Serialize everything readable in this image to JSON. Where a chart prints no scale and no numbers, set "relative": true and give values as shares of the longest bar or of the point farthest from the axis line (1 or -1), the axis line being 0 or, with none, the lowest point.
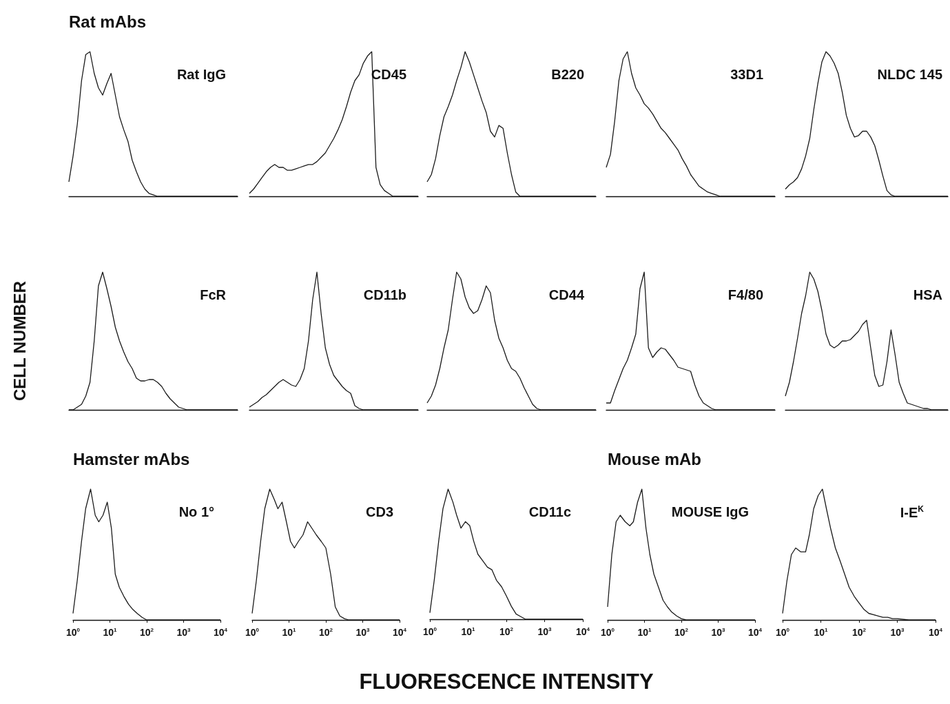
{
  "chart_data": [
    {
      "type": "line",
      "title": "Rat IgG",
      "subtitle": "Rat mAbs",
      "relative": true,
      "marker": "none",
      "color": "#1a1a1a",
      "categories": [
        null,
        null,
        null,
        null,
        null,
        null,
        null,
        null,
        null,
        null,
        null,
        null,
        null,
        null,
        null,
        null,
        null,
        null,
        null,
        null,
        null,
        null,
        null,
        null,
        null,
        null,
        null,
        null,
        null,
        null,
        null,
        null,
        null,
        null,
        null,
        null,
        null,
        null,
        null,
        null,
        null
      ],
      "values": [
        0.1,
        0.28,
        0.5,
        0.8,
        0.98,
        1,
        0.85,
        0.75,
        0.7,
        0.78,
        0.85,
        0.7,
        0.55,
        0.46,
        0.38,
        0.25,
        0.17,
        0.1,
        0.05,
        0.02,
        0.01,
        0,
        0,
        0,
        0,
        0,
        0,
        0,
        0,
        0,
        0,
        0,
        0,
        0,
        0,
        0,
        0,
        0,
        0,
        0,
        0
      ]
    },
    {
      "type": "line",
      "title": "CD45",
      "relative": true,
      "marker": "none",
      "color": "#1a1a1a",
      "categories": [
        null,
        null,
        null,
        null,
        null,
        null,
        null,
        null,
        null,
        null,
        null,
        null,
        null,
        null,
        null,
        null,
        null,
        null,
        null,
        null,
        null,
        null,
        null,
        null,
        null,
        null,
        null,
        null,
        null,
        null,
        null,
        null,
        null,
        null,
        null,
        null,
        null,
        null,
        null,
        null,
        null
      ],
      "values": [
        0.02,
        0.05,
        0.09,
        0.13,
        0.17,
        0.2,
        0.22,
        0.2,
        0.2,
        0.18,
        0.18,
        0.19,
        0.2,
        0.21,
        0.22,
        0.22,
        0.24,
        0.27,
        0.3,
        0.35,
        0.4,
        0.46,
        0.53,
        0.62,
        0.72,
        0.8,
        0.84,
        0.92,
        0.97,
        1,
        0.2,
        0.08,
        0.04,
        0.02,
        0,
        0,
        0,
        0,
        0,
        0,
        0
      ]
    },
    {
      "type": "line",
      "title": "B220",
      "relative": true,
      "marker": "none",
      "color": "#1a1a1a",
      "categories": [
        null,
        null,
        null,
        null,
        null,
        null,
        null,
        null,
        null,
        null,
        null,
        null,
        null,
        null,
        null,
        null,
        null,
        null,
        null,
        null,
        null,
        null,
        null,
        null,
        null,
        null,
        null,
        null,
        null,
        null,
        null,
        null,
        null,
        null,
        null,
        null,
        null,
        null,
        null,
        null,
        null
      ],
      "values": [
        0.1,
        0.15,
        0.26,
        0.42,
        0.55,
        0.62,
        0.7,
        0.8,
        0.89,
        1,
        0.93,
        0.84,
        0.75,
        0.66,
        0.58,
        0.45,
        0.41,
        0.49,
        0.47,
        0.3,
        0.15,
        0.03,
        0,
        0,
        0,
        0,
        0,
        0,
        0,
        0,
        0,
        0,
        0,
        0,
        0,
        0,
        0,
        0,
        0,
        0,
        0
      ]
    },
    {
      "type": "line",
      "title": "33D1",
      "relative": true,
      "marker": "none",
      "color": "#1a1a1a",
      "categories": [
        null,
        null,
        null,
        null,
        null,
        null,
        null,
        null,
        null,
        null,
        null,
        null,
        null,
        null,
        null,
        null,
        null,
        null,
        null,
        null,
        null,
        null,
        null,
        null,
        null,
        null,
        null,
        null,
        null,
        null,
        null,
        null,
        null,
        null,
        null,
        null,
        null,
        null,
        null,
        null,
        null
      ],
      "values": [
        0.2,
        0.29,
        0.52,
        0.8,
        0.95,
        1,
        0.85,
        0.75,
        0.7,
        0.64,
        0.61,
        0.57,
        0.52,
        0.47,
        0.44,
        0.4,
        0.36,
        0.32,
        0.26,
        0.21,
        0.15,
        0.11,
        0.07,
        0.05,
        0.03,
        0.02,
        0.01,
        0,
        0,
        0,
        0,
        0,
        0,
        0,
        0,
        0,
        0,
        0,
        0,
        0,
        0
      ]
    },
    {
      "type": "line",
      "title": "NLDC 145",
      "relative": true,
      "marker": "none",
      "color": "#1a1a1a",
      "categories": [
        null,
        null,
        null,
        null,
        null,
        null,
        null,
        null,
        null,
        null,
        null,
        null,
        null,
        null,
        null,
        null,
        null,
        null,
        null,
        null,
        null,
        null,
        null,
        null,
        null,
        null,
        null,
        null,
        null,
        null,
        null,
        null,
        null,
        null,
        null,
        null,
        null,
        null,
        null,
        null,
        null
      ],
      "values": [
        0.05,
        0.08,
        0.1,
        0.13,
        0.19,
        0.28,
        0.4,
        0.6,
        0.78,
        0.93,
        1,
        0.97,
        0.92,
        0.85,
        0.72,
        0.56,
        0.47,
        0.41,
        0.42,
        0.45,
        0.45,
        0.41,
        0.35,
        0.25,
        0.14,
        0.04,
        0.01,
        0,
        0,
        0,
        0,
        0,
        0,
        0,
        0,
        0,
        0,
        0,
        0,
        0,
        0
      ]
    },
    {
      "type": "line",
      "title": "FcR",
      "ylabel": "CELL NUMBER",
      "relative": true,
      "marker": "none",
      "color": "#1a1a1a",
      "categories": [
        null,
        null,
        null,
        null,
        null,
        null,
        null,
        null,
        null,
        null,
        null,
        null,
        null,
        null,
        null,
        null,
        null,
        null,
        null,
        null,
        null,
        null,
        null,
        null,
        null,
        null,
        null,
        null,
        null,
        null,
        null,
        null,
        null,
        null,
        null,
        null,
        null,
        null,
        null,
        null,
        null
      ],
      "values": [
        0,
        0,
        0.02,
        0.04,
        0.1,
        0.2,
        0.5,
        0.9,
        1,
        0.88,
        0.75,
        0.6,
        0.5,
        0.42,
        0.35,
        0.3,
        0.23,
        0.21,
        0.21,
        0.22,
        0.22,
        0.2,
        0.17,
        0.12,
        0.08,
        0.05,
        0.02,
        0.01,
        0,
        0,
        0,
        0,
        0,
        0,
        0,
        0,
        0,
        0,
        0,
        0,
        0
      ]
    },
    {
      "type": "line",
      "title": "CD11b",
      "relative": true,
      "marker": "none",
      "color": "#1a1a1a",
      "categories": [
        null,
        null,
        null,
        null,
        null,
        null,
        null,
        null,
        null,
        null,
        null,
        null,
        null,
        null,
        null,
        null,
        null,
        null,
        null,
        null,
        null,
        null,
        null,
        null,
        null,
        null,
        null,
        null,
        null,
        null,
        null,
        null,
        null,
        null,
        null,
        null,
        null,
        null,
        null,
        null,
        null
      ],
      "values": [
        0.02,
        0.04,
        0.06,
        0.09,
        0.11,
        0.14,
        0.17,
        0.2,
        0.22,
        0.2,
        0.18,
        0.17,
        0.22,
        0.3,
        0.5,
        0.8,
        1,
        0.7,
        0.45,
        0.33,
        0.25,
        0.21,
        0.17,
        0.14,
        0.12,
        0.03,
        0.01,
        0,
        0,
        0,
        0,
        0,
        0,
        0,
        0,
        0,
        0,
        0,
        0,
        0,
        0
      ]
    },
    {
      "type": "line",
      "title": "CD44",
      "relative": true,
      "marker": "none",
      "color": "#1a1a1a",
      "categories": [
        null,
        null,
        null,
        null,
        null,
        null,
        null,
        null,
        null,
        null,
        null,
        null,
        null,
        null,
        null,
        null,
        null,
        null,
        null,
        null,
        null,
        null,
        null,
        null,
        null,
        null,
        null,
        null,
        null,
        null,
        null,
        null,
        null,
        null,
        null,
        null,
        null,
        null,
        null,
        null,
        null
      ],
      "values": [
        0.05,
        0.1,
        0.18,
        0.3,
        0.45,
        0.58,
        0.8,
        1,
        0.95,
        0.82,
        0.74,
        0.7,
        0.72,
        0.8,
        0.9,
        0.85,
        0.65,
        0.52,
        0.45,
        0.36,
        0.3,
        0.28,
        0.23,
        0.16,
        0.1,
        0.04,
        0.01,
        0,
        0,
        0,
        0,
        0,
        0,
        0,
        0,
        0,
        0,
        0,
        0,
        0,
        0
      ]
    },
    {
      "type": "line",
      "title": "F4/80",
      "relative": true,
      "marker": "none",
      "color": "#1a1a1a",
      "categories": [
        null,
        null,
        null,
        null,
        null,
        null,
        null,
        null,
        null,
        null,
        null,
        null,
        null,
        null,
        null,
        null,
        null,
        null,
        null,
        null,
        null,
        null,
        null,
        null,
        null,
        null,
        null,
        null,
        null,
        null,
        null,
        null,
        null,
        null,
        null,
        null,
        null,
        null,
        null,
        null,
        null
      ],
      "values": [
        0.05,
        0.05,
        0.14,
        0.22,
        0.3,
        0.36,
        0.45,
        0.55,
        0.88,
        1,
        0.45,
        0.38,
        0.42,
        0.45,
        0.44,
        0.4,
        0.36,
        0.31,
        0.3,
        0.29,
        0.28,
        0.18,
        0.1,
        0.05,
        0.03,
        0.01,
        0,
        0,
        0,
        0,
        0,
        0,
        0,
        0,
        0,
        0,
        0,
        0,
        0,
        0,
        0
      ]
    },
    {
      "type": "line",
      "title": "HSA",
      "relative": true,
      "marker": "none",
      "color": "#1a1a1a",
      "categories": [
        null,
        null,
        null,
        null,
        null,
        null,
        null,
        null,
        null,
        null,
        null,
        null,
        null,
        null,
        null,
        null,
        null,
        null,
        null,
        null,
        null,
        null,
        null,
        null,
        null,
        null,
        null,
        null,
        null,
        null,
        null,
        null,
        null,
        null,
        null,
        null,
        null,
        null,
        null,
        null,
        null
      ],
      "values": [
        0.1,
        0.2,
        0.35,
        0.52,
        0.7,
        0.83,
        1,
        0.95,
        0.86,
        0.72,
        0.55,
        0.47,
        0.45,
        0.47,
        0.5,
        0.5,
        0.51,
        0.54,
        0.57,
        0.62,
        0.65,
        0.45,
        0.25,
        0.17,
        0.18,
        0.35,
        0.58,
        0.4,
        0.2,
        0.12,
        0.05,
        0.04,
        0.03,
        0.02,
        0.01,
        0.01,
        0,
        0,
        0,
        0,
        0
      ]
    },
    {
      "type": "line",
      "title": "No 1°",
      "subtitle": "Hamster mAbs",
      "relative": true,
      "log": "x",
      "marker": "none",
      "color": "#1a1a1a",
      "tick_labels": "x",
      "xlim": [
        1,
        10000
      ],
      "xticks": [
        {
          "value": 1,
          "label": "10$^{0}$"
        },
        {
          "value": 10,
          "label": "10$^{1}$"
        },
        {
          "value": 100,
          "label": "10$^{2}$"
        },
        {
          "value": 1000,
          "label": "10$^{3}$"
        },
        {
          "value": 10000,
          "label": "10$^{4}$"
        }
      ],
      "x": [
        1,
        1.3,
        1.7,
        2.2,
        3,
        4,
        5,
        6.5,
        8.5,
        11,
        14,
        18,
        24,
        32,
        42,
        55,
        75,
        100,
        135,
        180,
        240,
        320,
        420,
        560,
        750,
        1000,
        2000,
        5000,
        10000
      ],
      "values": [
        0.05,
        0.3,
        0.6,
        0.85,
        1,
        0.8,
        0.75,
        0.8,
        0.9,
        0.7,
        0.35,
        0.25,
        0.18,
        0.12,
        0.08,
        0.05,
        0.02,
        0,
        0,
        0,
        0,
        0,
        0,
        0,
        0,
        0,
        0,
        0,
        0
      ]
    },
    {
      "type": "line",
      "title": "CD3",
      "relative": true,
      "log": "x",
      "marker": "none",
      "color": "#1a1a1a",
      "tick_labels": "x",
      "xlim": [
        1,
        10000
      ],
      "xticks": [
        {
          "value": 1,
          "label": "10$^{0}$"
        },
        {
          "value": 10,
          "label": "10$^{1}$"
        },
        {
          "value": 100,
          "label": "10$^{2}$"
        },
        {
          "value": 1000,
          "label": "10$^{3}$"
        },
        {
          "value": 10000,
          "label": "10$^{4}$"
        }
      ],
      "x": [
        1,
        1.3,
        1.7,
        2.2,
        3,
        4,
        5,
        6.5,
        8.5,
        11,
        14,
        18,
        24,
        32,
        42,
        55,
        75,
        100,
        135,
        180,
        240,
        320,
        420,
        560,
        750,
        1000,
        2000,
        5000,
        10000
      ],
      "values": [
        0.05,
        0.3,
        0.6,
        0.85,
        1,
        0.92,
        0.85,
        0.9,
        0.75,
        0.6,
        0.55,
        0.6,
        0.65,
        0.75,
        0.7,
        0.65,
        0.6,
        0.55,
        0.35,
        0.1,
        0.03,
        0.01,
        0,
        0,
        0,
        0,
        0,
        0,
        0
      ]
    },
    {
      "type": "line",
      "title": "CD11c",
      "xlabel": "FLUORESCENCE INTENSITY",
      "relative": true,
      "log": "x",
      "marker": "none",
      "color": "#1a1a1a",
      "tick_labels": "x",
      "xlim": [
        1,
        10000
      ],
      "xticks": [
        {
          "value": 1,
          "label": "10$^{0}$"
        },
        {
          "value": 10,
          "label": "10$^{1}$"
        },
        {
          "value": 100,
          "label": "10$^{2}$"
        },
        {
          "value": 1000,
          "label": "10$^{3}$"
        },
        {
          "value": 10000,
          "label": "10$^{4}$"
        }
      ],
      "x": [
        1,
        1.3,
        1.7,
        2.2,
        3,
        4,
        5,
        6.5,
        8.5,
        11,
        14,
        18,
        24,
        32,
        42,
        55,
        75,
        100,
        135,
        180,
        240,
        320,
        420,
        560,
        750,
        1000,
        2000,
        5000,
        10000
      ],
      "values": [
        0.05,
        0.3,
        0.6,
        0.85,
        1,
        0.9,
        0.8,
        0.7,
        0.75,
        0.72,
        0.6,
        0.5,
        0.45,
        0.4,
        0.38,
        0.3,
        0.25,
        0.18,
        0.1,
        0.04,
        0.02,
        0,
        0,
        0,
        0,
        0,
        0,
        0,
        0
      ]
    },
    {
      "type": "line",
      "title": "MOUSE IgG",
      "subtitle": "Mouse mAb",
      "relative": true,
      "log": "x",
      "marker": "none",
      "color": "#1a1a1a",
      "tick_labels": "x",
      "xlim": [
        1,
        10000
      ],
      "xticks": [
        {
          "value": 1,
          "label": "10$^{0}$"
        },
        {
          "value": 10,
          "label": "10$^{1}$"
        },
        {
          "value": 100,
          "label": "10$^{2}$"
        },
        {
          "value": 1000,
          "label": "10$^{3}$"
        },
        {
          "value": 10000,
          "label": "10$^{4}$"
        }
      ],
      "x": [
        1,
        1.3,
        1.7,
        2.2,
        3,
        4,
        5,
        6.5,
        8.5,
        11,
        14,
        18,
        24,
        32,
        42,
        55,
        75,
        100,
        135,
        180,
        240,
        320,
        420,
        560,
        750,
        1000,
        2000,
        5000,
        10000
      ],
      "values": [
        0.1,
        0.5,
        0.75,
        0.8,
        0.75,
        0.72,
        0.75,
        0.9,
        1,
        0.7,
        0.5,
        0.35,
        0.25,
        0.15,
        0.1,
        0.06,
        0.03,
        0.01,
        0,
        0,
        0,
        0,
        0,
        0,
        0,
        0,
        0,
        0,
        0
      ]
    },
    {
      "type": "line",
      "title": "I-E$^{K}$",
      "relative": true,
      "log": "x",
      "marker": "none",
      "color": "#1a1a1a",
      "tick_labels": "x",
      "xlim": [
        1,
        10000
      ],
      "xticks": [
        {
          "value": 1,
          "label": "10$^{0}$"
        },
        {
          "value": 10,
          "label": "10$^{1}$"
        },
        {
          "value": 100,
          "label": "10$^{2}$"
        },
        {
          "value": 1000,
          "label": "10$^{3}$"
        },
        {
          "value": 10000,
          "label": "10$^{4}$"
        }
      ],
      "x": [
        1,
        1.3,
        1.7,
        2.2,
        3,
        4,
        5,
        6.5,
        8.5,
        11,
        14,
        18,
        24,
        32,
        42,
        55,
        75,
        100,
        135,
        180,
        240,
        320,
        420,
        560,
        750,
        1000,
        2000,
        5000,
        10000
      ],
      "values": [
        0.05,
        0.3,
        0.5,
        0.55,
        0.52,
        0.52,
        0.65,
        0.85,
        0.95,
        1,
        0.85,
        0.7,
        0.55,
        0.45,
        0.35,
        0.25,
        0.18,
        0.13,
        0.08,
        0.05,
        0.04,
        0.03,
        0.02,
        0.02,
        0.01,
        0.01,
        0,
        0,
        0
      ]
    }
  ]
}
